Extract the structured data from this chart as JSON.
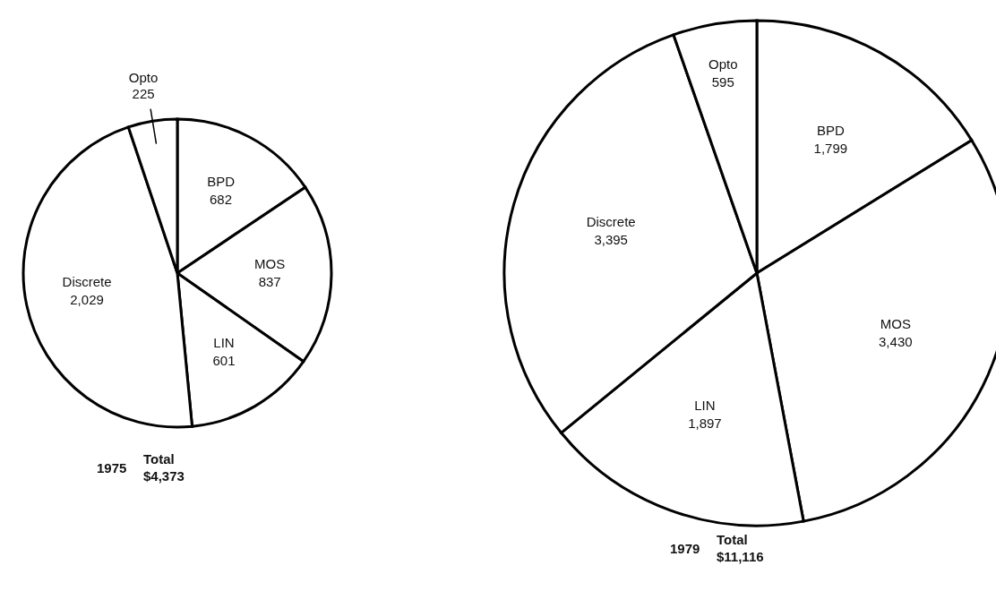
{
  "chart_data": [
    {
      "type": "pie",
      "title": "1975",
      "annotations": [
        "Total $4,373"
      ],
      "categories": [
        "BPD",
        "MOS",
        "LIN",
        "Discrete",
        "Opto"
      ],
      "values": [
        682,
        837,
        601,
        2029,
        225
      ],
      "value_labels": [
        "682",
        "837",
        "601",
        "2,029",
        "225"
      ],
      "colors": [
        "#ffffff",
        "#ffffff",
        "#ffffff",
        "#ffffff",
        "#ffffff"
      ],
      "legend": false
    },
    {
      "type": "pie",
      "title": "1979",
      "annotations": [
        "Total $11,116"
      ],
      "categories": [
        "BPD",
        "MOS",
        "LIN",
        "Discrete",
        "Opto"
      ],
      "values": [
        1799,
        3430,
        1897,
        3395,
        595
      ],
      "value_labels": [
        "1,799",
        "3,430",
        "1,897",
        "3,395",
        "595"
      ],
      "colors": [
        "#ffffff",
        "#ffffff",
        "#ffffff",
        "#ffffff",
        "#ffffff"
      ],
      "legend": false
    }
  ]
}
